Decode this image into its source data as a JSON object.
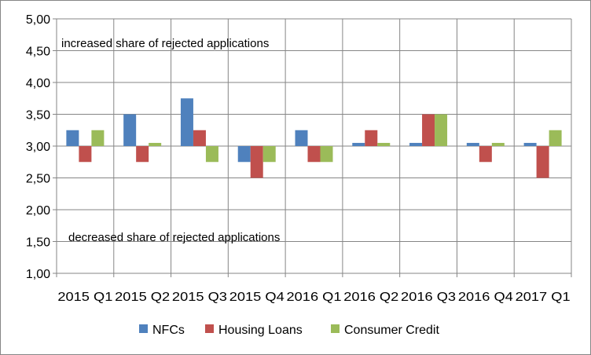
{
  "chart_data": {
    "type": "bar",
    "categories": [
      "2015 Q1",
      "2015 Q2",
      "2015 Q3",
      "2015 Q4",
      "2016 Q1",
      "2016 Q2",
      "2016 Q3",
      "2016 Q4",
      "2017 Q1"
    ],
    "baseline": 3.0,
    "series": [
      {
        "name": "NFCs",
        "color": "#4F81BD",
        "values": [
          3.25,
          3.5,
          3.75,
          2.75,
          3.25,
          3.05,
          3.05,
          3.05,
          3.05
        ]
      },
      {
        "name": "Housing Loans",
        "color": "#C0504D",
        "values": [
          2.75,
          2.75,
          3.25,
          2.5,
          2.75,
          3.25,
          3.5,
          2.75,
          2.5
        ]
      },
      {
        "name": "Consumer Credit",
        "color": "#9BBB59",
        "values": [
          3.25,
          3.05,
          2.75,
          2.75,
          2.75,
          3.05,
          3.5,
          3.05,
          3.25
        ]
      }
    ],
    "ylim": [
      1.0,
      5.0
    ],
    "yticks": [
      1.0,
      1.5,
      2.0,
      2.5,
      3.0,
      3.5,
      4.0,
      4.5,
      5.0
    ],
    "ytick_labels": [
      "1,00",
      "1,50",
      "2,00",
      "2,50",
      "3,00",
      "3,50",
      "4,00",
      "4,50",
      "5,00"
    ],
    "grid": true,
    "legend_position": "bottom",
    "annotations": {
      "upper": "increased  share of rejected applications",
      "lower": "decreased share of rejected applications"
    }
  }
}
